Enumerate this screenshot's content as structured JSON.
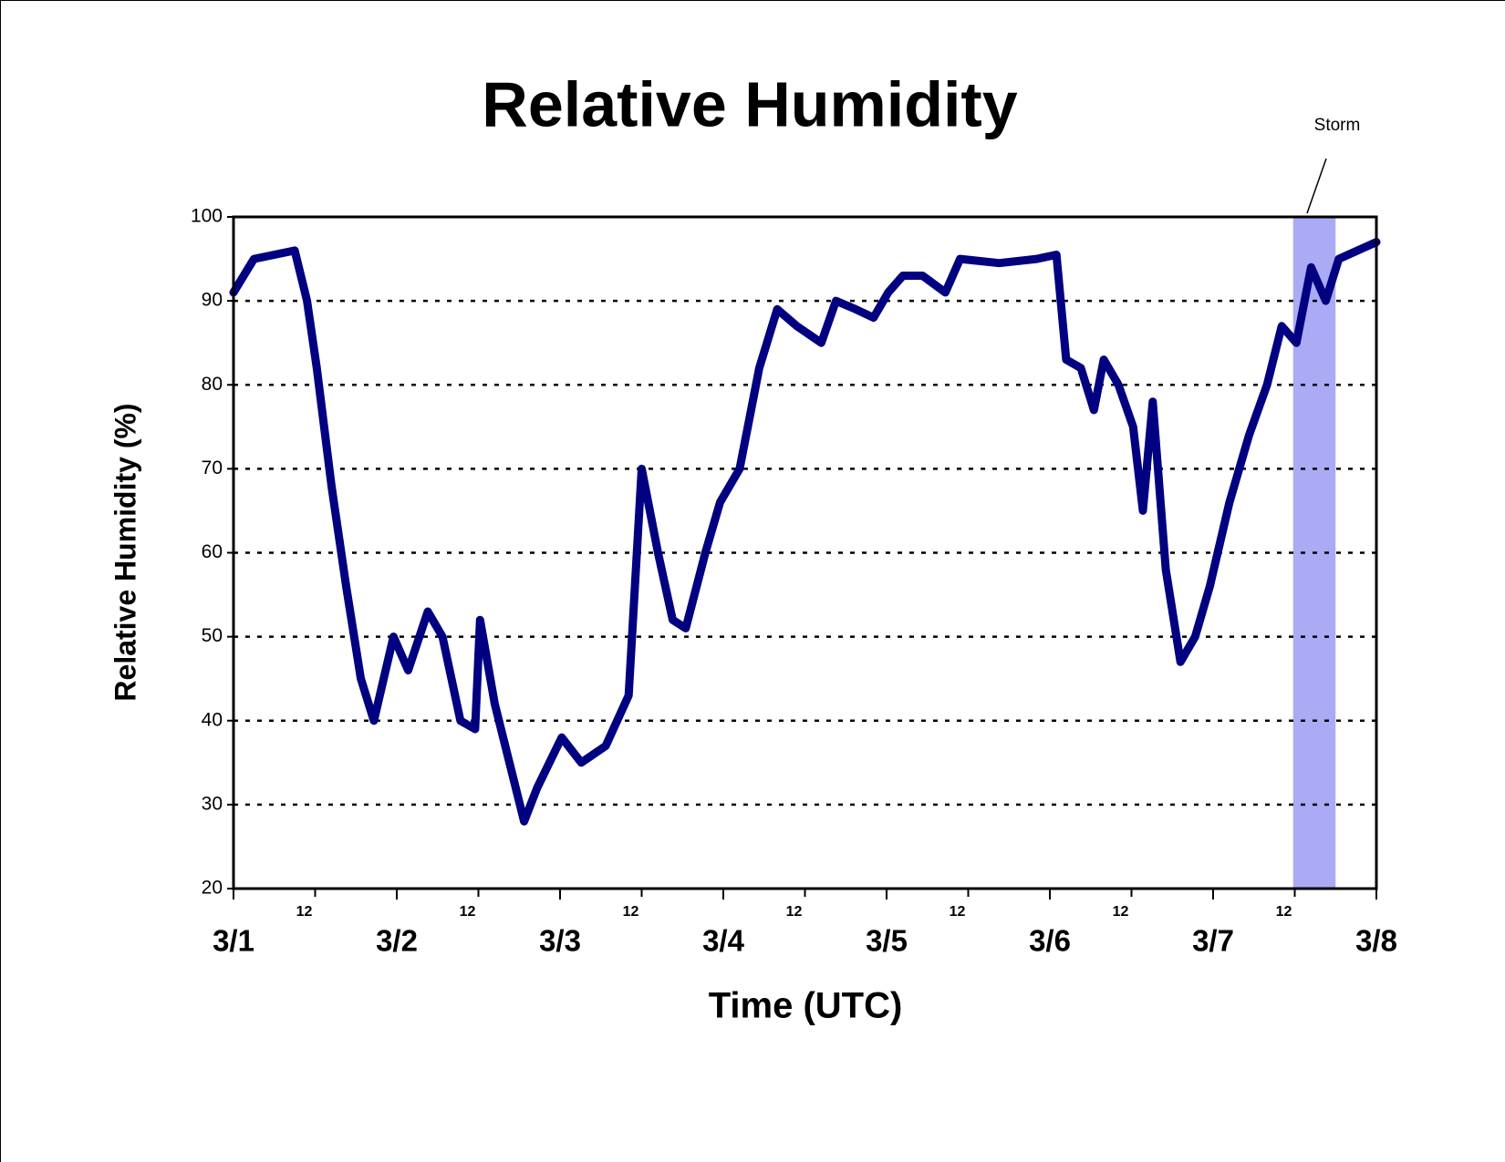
{
  "chart_data": {
    "type": "line",
    "title": "Relative Humidity",
    "x_label": "Time (UTC)",
    "y_label": "Relative Humidity (%)",
    "annotation": "Storm",
    "storm_span": [
      6.49,
      6.75
    ],
    "storm_color": "#aaaaf5",
    "xlim": [
      0,
      7
    ],
    "ylim": [
      20,
      100
    ],
    "yticks": [
      20,
      30,
      40,
      50,
      60,
      70,
      80,
      90,
      100
    ],
    "xticks": [
      {
        "value": 0,
        "label": "3/1"
      },
      {
        "value": 0.5,
        "label": "12"
      },
      {
        "value": 1,
        "label": "3/2"
      },
      {
        "value": 1.5,
        "label": "12"
      },
      {
        "value": 2,
        "label": "3/3"
      },
      {
        "value": 2.5,
        "label": "12"
      },
      {
        "value": 3,
        "label": "3/4"
      },
      {
        "value": 3.5,
        "label": "12"
      },
      {
        "value": 4,
        "label": "3/5"
      },
      {
        "value": 4.5,
        "label": "12"
      },
      {
        "value": 5,
        "label": "3/6"
      },
      {
        "value": 5.5,
        "label": "12"
      },
      {
        "value": 6,
        "label": "3/7"
      },
      {
        "value": 6.5,
        "label": "12"
      },
      {
        "value": 7,
        "label": "3/8"
      }
    ],
    "grid": true,
    "color": "#000080",
    "x": [
      0,
      0.125,
      0.25,
      0.375,
      0.45,
      0.51,
      0.6,
      0.69,
      0.78,
      0.86,
      0.98,
      1.07,
      1.19,
      1.28,
      1.39,
      1.48,
      1.51,
      1.6,
      1.69,
      1.78,
      1.86,
      2.01,
      2.13,
      2.28,
      2.42,
      2.5,
      2.6,
      2.69,
      2.77,
      2.89,
      2.98,
      3.1,
      3.22,
      3.33,
      3.45,
      3.6,
      3.69,
      3.81,
      3.92,
      4.01,
      4.1,
      4.22,
      4.36,
      4.45,
      4.69,
      4.92,
      5.04,
      5.1,
      5.19,
      5.27,
      5.33,
      5.42,
      5.51,
      5.57,
      5.63,
      5.71,
      5.8,
      5.89,
      5.98,
      6.1,
      6.22,
      6.33,
      6.42,
      6.51,
      6.6,
      6.69,
      6.77,
      7
    ],
    "values": [
      91,
      95,
      95.5,
      96,
      90,
      82,
      68,
      56,
      45,
      40,
      50,
      46,
      53,
      50,
      40,
      39,
      52,
      42,
      35,
      28,
      32,
      38,
      35,
      37,
      43,
      70,
      60,
      52,
      51,
      60,
      66,
      70,
      82,
      89,
      87,
      85,
      90,
      89,
      88,
      91,
      93,
      93,
      91,
      95,
      94.5,
      95,
      95.5,
      83,
      82,
      77,
      83,
      80,
      75,
      65,
      78,
      58,
      47,
      50,
      56,
      66,
      74,
      80,
      87,
      85,
      94,
      90,
      95,
      97
    ]
  }
}
